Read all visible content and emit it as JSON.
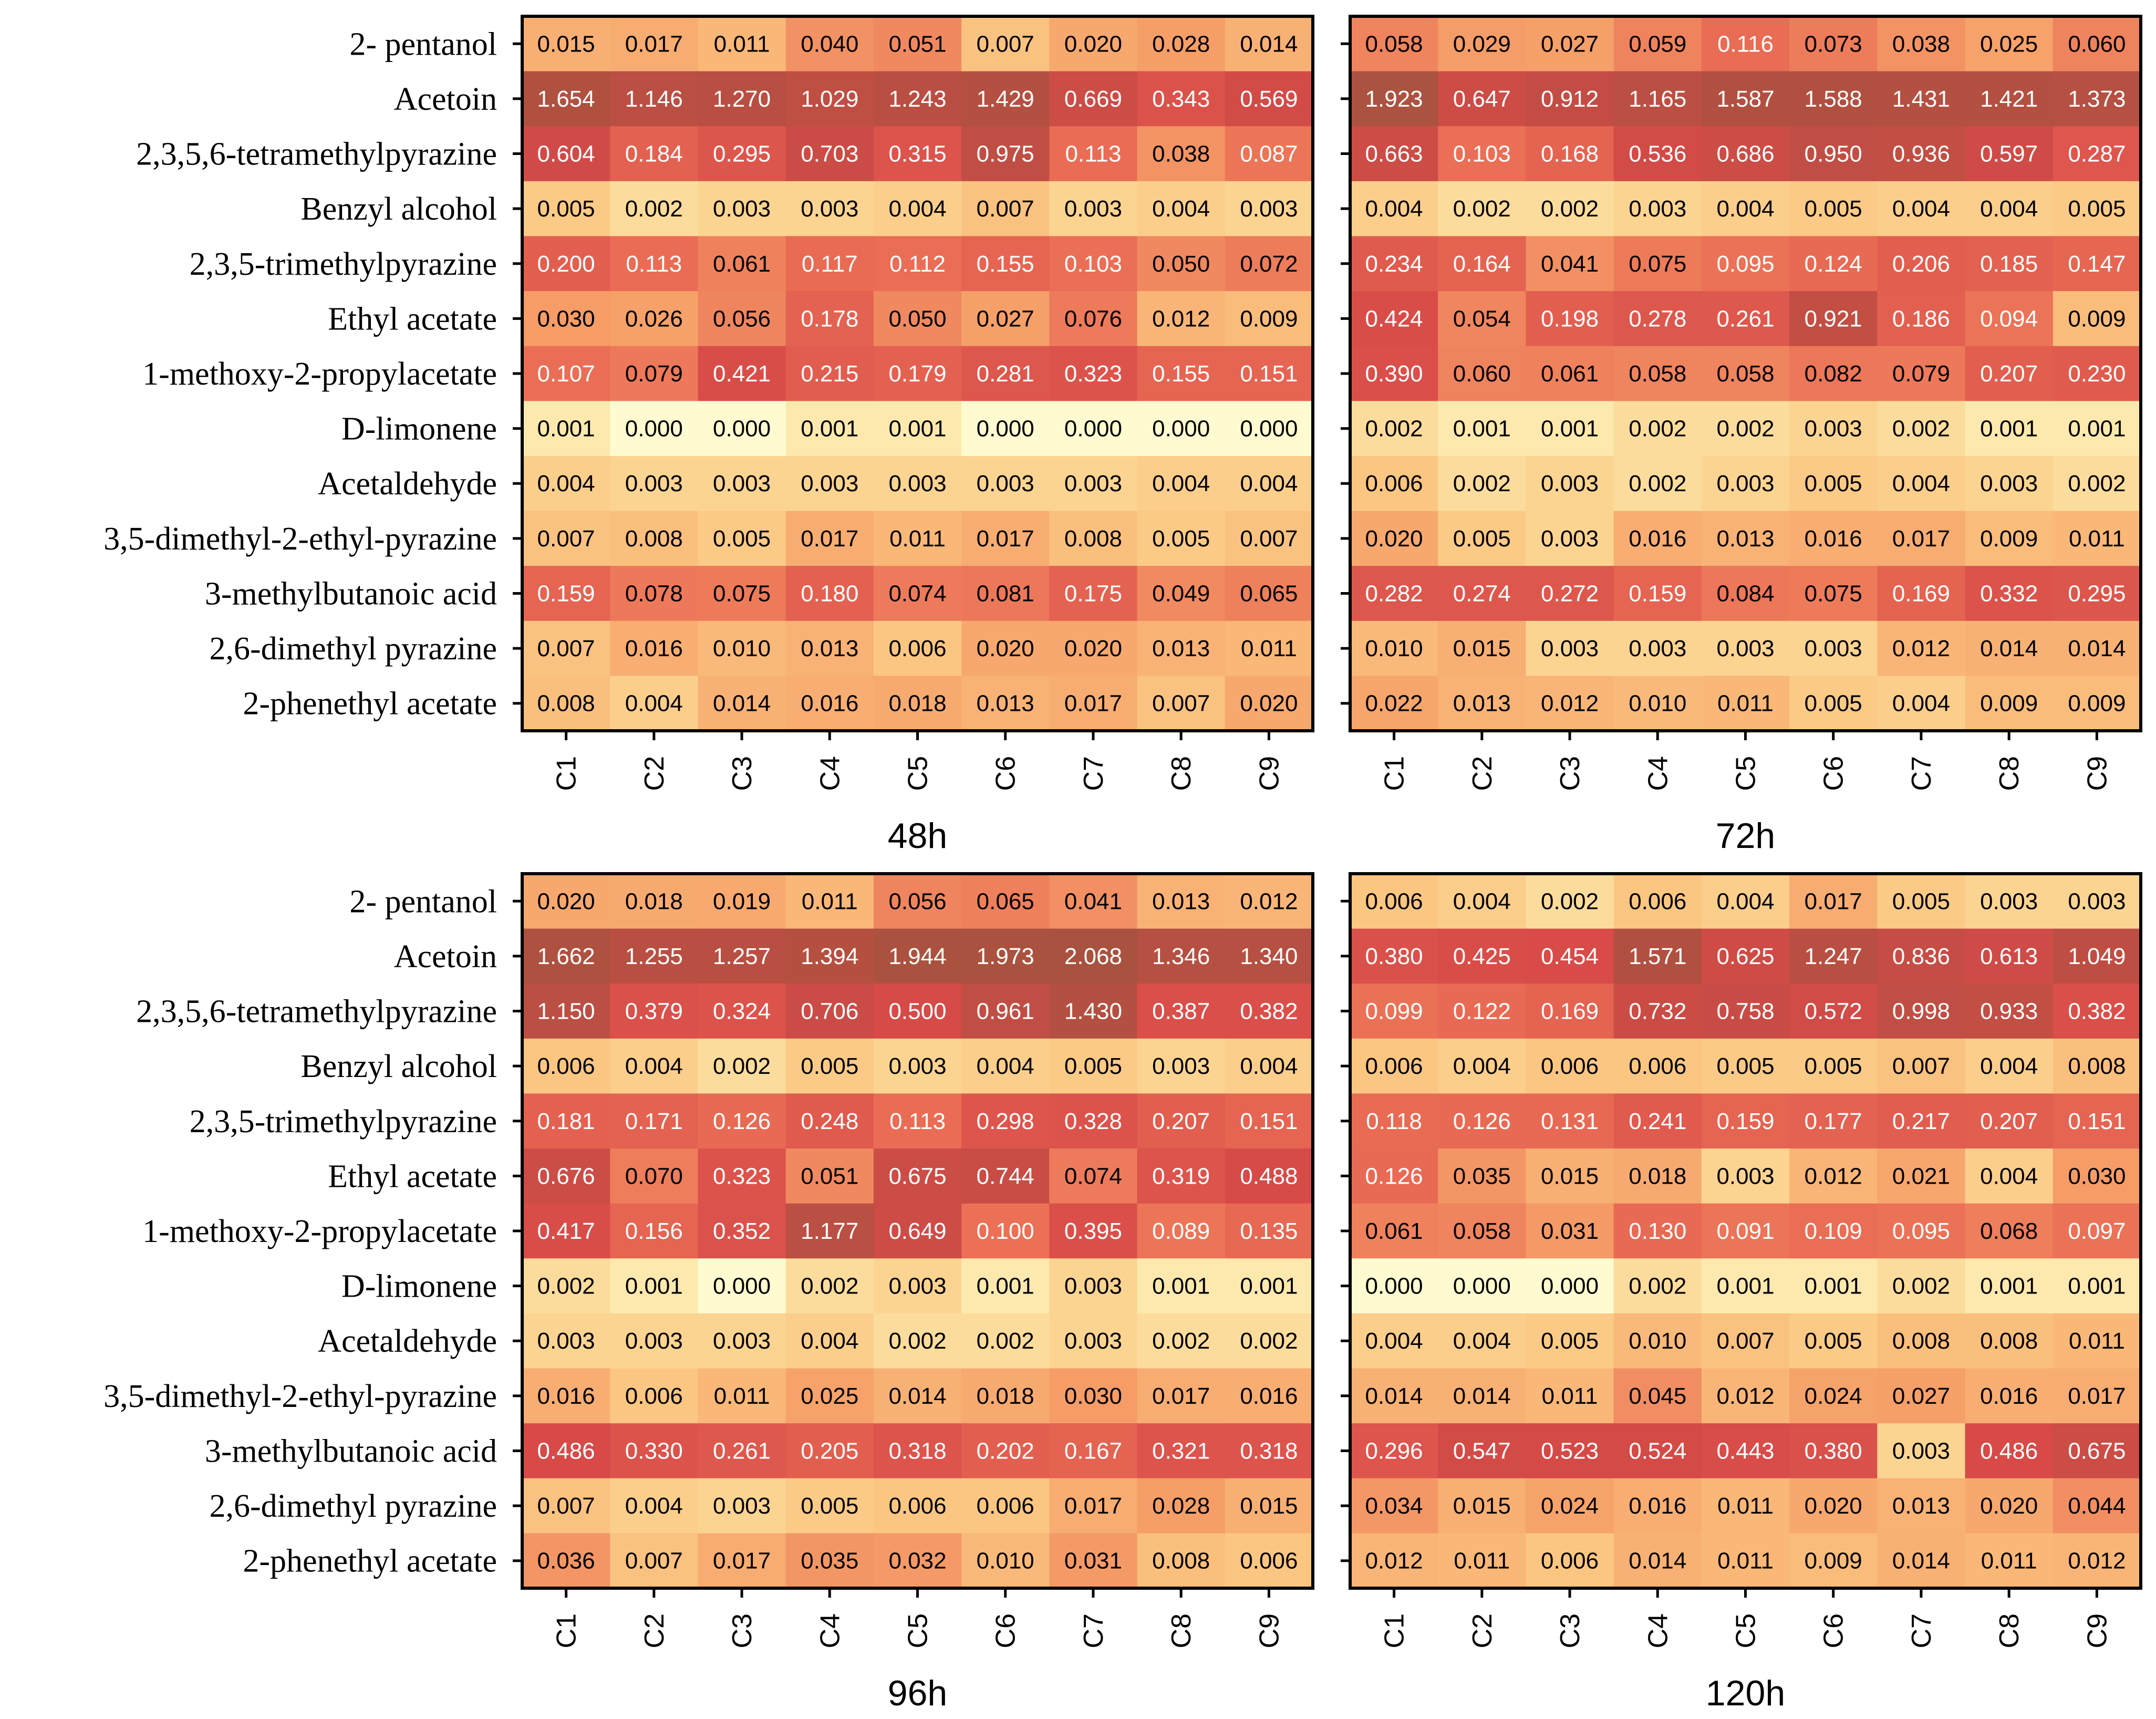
{
  "chart_data": {
    "type": "heatmap",
    "rows": [
      "2- pentanol",
      "Acetoin",
      "2,3,5,6-tetramethylpyrazine",
      "Benzyl alcohol",
      "2,3,5-trimethylpyrazine",
      "Ethyl acetate",
      "1-methoxy-2-propylacetate",
      "D-limonene",
      "Acetaldehyde",
      "3,5-dimethyl-2-ethyl-pyrazine",
      "3-methylbutanoic acid",
      "2,6-dimethyl pyrazine",
      "2-phenethyl acetate"
    ],
    "columns": [
      "C1",
      "C2",
      "C3",
      "C4",
      "C5",
      "C6",
      "C7",
      "C8",
      "C9"
    ],
    "panels": [
      {
        "title": "48h",
        "values": [
          [
            "0.015",
            "0.017",
            "0.011",
            "0.040",
            "0.051",
            "0.007",
            "0.020",
            "0.028",
            "0.014"
          ],
          [
            "1.654",
            "1.146",
            "1.270",
            "1.029",
            "1.243",
            "1.429",
            "0.669",
            "0.343",
            "0.569"
          ],
          [
            "0.604",
            "0.184",
            "0.295",
            "0.703",
            "0.315",
            "0.975",
            "0.113",
            "0.038",
            "0.087"
          ],
          [
            "0.005",
            "0.002",
            "0.003",
            "0.003",
            "0.004",
            "0.007",
            "0.003",
            "0.004",
            "0.003"
          ],
          [
            "0.200",
            "0.113",
            "0.061",
            "0.117",
            "0.112",
            "0.155",
            "0.103",
            "0.050",
            "0.072"
          ],
          [
            "0.030",
            "0.026",
            "0.056",
            "0.178",
            "0.050",
            "0.027",
            "0.076",
            "0.012",
            "0.009"
          ],
          [
            "0.107",
            "0.079",
            "0.421",
            "0.215",
            "0.179",
            "0.281",
            "0.323",
            "0.155",
            "0.151"
          ],
          [
            "0.001",
            "0.000",
            "0.000",
            "0.001",
            "0.001",
            "0.000",
            "0.000",
            "0.000",
            "0.000"
          ],
          [
            "0.004",
            "0.003",
            "0.003",
            "0.003",
            "0.003",
            "0.003",
            "0.003",
            "0.004",
            "0.004"
          ],
          [
            "0.007",
            "0.008",
            "0.005",
            "0.017",
            "0.011",
            "0.017",
            "0.008",
            "0.005",
            "0.007"
          ],
          [
            "0.159",
            "0.078",
            "0.075",
            "0.180",
            "0.074",
            "0.081",
            "0.175",
            "0.049",
            "0.065"
          ],
          [
            "0.007",
            "0.016",
            "0.010",
            "0.013",
            "0.006",
            "0.020",
            "0.020",
            "0.013",
            "0.011"
          ],
          [
            "0.008",
            "0.004",
            "0.014",
            "0.016",
            "0.018",
            "0.013",
            "0.017",
            "0.007",
            "0.020"
          ]
        ]
      },
      {
        "title": "72h",
        "values": [
          [
            "0.058",
            "0.029",
            "0.027",
            "0.059",
            "0.116",
            "0.073",
            "0.038",
            "0.025",
            "0.060"
          ],
          [
            "1.923",
            "0.647",
            "0.912",
            "1.165",
            "1.587",
            "1.588",
            "1.431",
            "1.421",
            "1.373"
          ],
          [
            "0.663",
            "0.103",
            "0.168",
            "0.536",
            "0.686",
            "0.950",
            "0.936",
            "0.597",
            "0.287"
          ],
          [
            "0.004",
            "0.002",
            "0.002",
            "0.003",
            "0.004",
            "0.005",
            "0.004",
            "0.004",
            "0.005"
          ],
          [
            "0.234",
            "0.164",
            "0.041",
            "0.075",
            "0.095",
            "0.124",
            "0.206",
            "0.185",
            "0.147"
          ],
          [
            "0.424",
            "0.054",
            "0.198",
            "0.278",
            "0.261",
            "0.921",
            "0.186",
            "0.094",
            "0.009"
          ],
          [
            "0.390",
            "0.060",
            "0.061",
            "0.058",
            "0.058",
            "0.082",
            "0.079",
            "0.207",
            "0.230"
          ],
          [
            "0.002",
            "0.001",
            "0.001",
            "0.002",
            "0.002",
            "0.003",
            "0.002",
            "0.001",
            "0.001"
          ],
          [
            "0.006",
            "0.002",
            "0.003",
            "0.002",
            "0.003",
            "0.005",
            "0.004",
            "0.003",
            "0.002"
          ],
          [
            "0.020",
            "0.005",
            "0.003",
            "0.016",
            "0.013",
            "0.016",
            "0.017",
            "0.009",
            "0.011"
          ],
          [
            "0.282",
            "0.274",
            "0.272",
            "0.159",
            "0.084",
            "0.075",
            "0.169",
            "0.332",
            "0.295"
          ],
          [
            "0.010",
            "0.015",
            "0.003",
            "0.003",
            "0.003",
            "0.003",
            "0.012",
            "0.014",
            "0.014"
          ],
          [
            "0.022",
            "0.013",
            "0.012",
            "0.010",
            "0.011",
            "0.005",
            "0.004",
            "0.009",
            "0.009"
          ]
        ]
      },
      {
        "title": "96h",
        "values": [
          [
            "0.020",
            "0.018",
            "0.019",
            "0.011",
            "0.056",
            "0.065",
            "0.041",
            "0.013",
            "0.012"
          ],
          [
            "1.662",
            "1.255",
            "1.257",
            "1.394",
            "1.944",
            "1.973",
            "2.068",
            "1.346",
            "1.340"
          ],
          [
            "1.150",
            "0.379",
            "0.324",
            "0.706",
            "0.500",
            "0.961",
            "1.430",
            "0.387",
            "0.382"
          ],
          [
            "0.006",
            "0.004",
            "0.002",
            "0.005",
            "0.003",
            "0.004",
            "0.005",
            "0.003",
            "0.004"
          ],
          [
            "0.181",
            "0.171",
            "0.126",
            "0.248",
            "0.113",
            "0.298",
            "0.328",
            "0.207",
            "0.151"
          ],
          [
            "0.676",
            "0.070",
            "0.323",
            "0.051",
            "0.675",
            "0.744",
            "0.074",
            "0.319",
            "0.488"
          ],
          [
            "0.417",
            "0.156",
            "0.352",
            "1.177",
            "0.649",
            "0.100",
            "0.395",
            "0.089",
            "0.135"
          ],
          [
            "0.002",
            "0.001",
            "0.000",
            "0.002",
            "0.003",
            "0.001",
            "0.003",
            "0.001",
            "0.001"
          ],
          [
            "0.003",
            "0.003",
            "0.003",
            "0.004",
            "0.002",
            "0.002",
            "0.003",
            "0.002",
            "0.002"
          ],
          [
            "0.016",
            "0.006",
            "0.011",
            "0.025",
            "0.014",
            "0.018",
            "0.030",
            "0.017",
            "0.016"
          ],
          [
            "0.486",
            "0.330",
            "0.261",
            "0.205",
            "0.318",
            "0.202",
            "0.167",
            "0.321",
            "0.318"
          ],
          [
            "0.007",
            "0.004",
            "0.003",
            "0.005",
            "0.006",
            "0.006",
            "0.017",
            "0.028",
            "0.015"
          ],
          [
            "0.036",
            "0.007",
            "0.017",
            "0.035",
            "0.032",
            "0.010",
            "0.031",
            "0.008",
            "0.006"
          ]
        ]
      },
      {
        "title": "120h",
        "values": [
          [
            "0.006",
            "0.004",
            "0.002",
            "0.006",
            "0.004",
            "0.017",
            "0.005",
            "0.003",
            "0.003"
          ],
          [
            "0.380",
            "0.425",
            "0.454",
            "1.571",
            "0.625",
            "1.247",
            "0.836",
            "0.613",
            "1.049"
          ],
          [
            "0.099",
            "0.122",
            "0.169",
            "0.732",
            "0.758",
            "0.572",
            "0.998",
            "0.933",
            "0.382"
          ],
          [
            "0.006",
            "0.004",
            "0.006",
            "0.006",
            "0.005",
            "0.005",
            "0.007",
            "0.004",
            "0.008"
          ],
          [
            "0.118",
            "0.126",
            "0.131",
            "0.241",
            "0.159",
            "0.177",
            "0.217",
            "0.207",
            "0.151"
          ],
          [
            "0.126",
            "0.035",
            "0.015",
            "0.018",
            "0.003",
            "0.012",
            "0.021",
            "0.004",
            "0.030"
          ],
          [
            "0.061",
            "0.058",
            "0.031",
            "0.130",
            "0.091",
            "0.109",
            "0.095",
            "0.068",
            "0.097"
          ],
          [
            "0.000",
            "0.000",
            "0.000",
            "0.002",
            "0.001",
            "0.001",
            "0.002",
            "0.001",
            "0.001"
          ],
          [
            "0.004",
            "0.004",
            "0.005",
            "0.010",
            "0.007",
            "0.005",
            "0.008",
            "0.008",
            "0.011"
          ],
          [
            "0.014",
            "0.014",
            "0.011",
            "0.045",
            "0.012",
            "0.024",
            "0.027",
            "0.016",
            "0.017"
          ],
          [
            "0.296",
            "0.547",
            "0.523",
            "0.524",
            "0.443",
            "0.380",
            "0.003",
            "0.486",
            "0.675"
          ],
          [
            "0.034",
            "0.015",
            "0.024",
            "0.016",
            "0.011",
            "0.020",
            "0.013",
            "0.020",
            "0.044"
          ],
          [
            "0.012",
            "0.011",
            "0.006",
            "0.014",
            "0.011",
            "0.009",
            "0.014",
            "0.011",
            "0.012"
          ]
        ]
      }
    ],
    "colormap": [
      "#fffbd0",
      "#fde5a6",
      "#fbc783",
      "#f6a26a",
      "#ea6d55",
      "#d74a48",
      "#a8523f"
    ],
    "scale": "log"
  }
}
